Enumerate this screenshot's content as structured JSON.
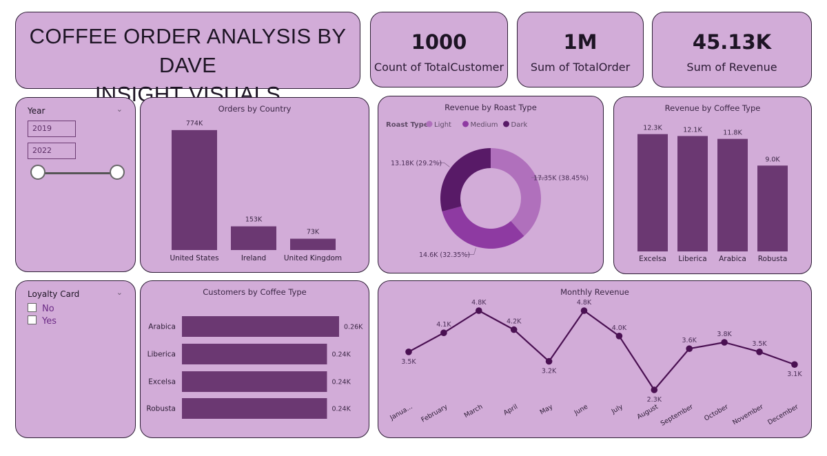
{
  "header": {
    "title_line1": "COFFEE ORDER ANALYSIS BY DAVE",
    "title_line2": "INSIGHT VISUALS"
  },
  "kpis": [
    {
      "value": "1000",
      "label": "Count of TotalCustomer"
    },
    {
      "value": "1M",
      "label": "Sum of TotalOrder"
    },
    {
      "value": "45.13K",
      "label": "Sum of Revenue"
    }
  ],
  "year_slicer": {
    "title": "Year",
    "start": "2019",
    "end": "2022"
  },
  "loyalty_slicer": {
    "title": "Loyalty Card",
    "options": [
      "No",
      "Yes"
    ]
  },
  "colors": {
    "bar": "#6b3872",
    "light": "#b070bc",
    "medium": "#8e3aa2",
    "dark": "#581a67",
    "line": "#4a1052"
  },
  "chart_data": [
    {
      "type": "bar",
      "title": "Orders by Country",
      "categories": [
        "United States",
        "Ireland",
        "United Kingdom"
      ],
      "values": [
        774,
        153,
        73
      ],
      "data_labels": [
        "774K",
        "153K",
        "73K"
      ],
      "ylim": [
        0,
        800
      ]
    },
    {
      "type": "pie",
      "title": "Revenue by Roast Type",
      "legend_title": "Roast Type",
      "legend_placement": "top-left",
      "categories": [
        "Light",
        "Medium",
        "Dark"
      ],
      "values": [
        17.35,
        14.6,
        13.18
      ],
      "data_labels": [
        "17.35K (38.45%)",
        "14.6K (32.35%)",
        "13.18K (29.2%)"
      ]
    },
    {
      "type": "bar",
      "title": "Revenue by Coffee Type",
      "categories": [
        "Excelsa",
        "Liberica",
        "Arabica",
        "Robusta"
      ],
      "values": [
        12.3,
        12.1,
        11.8,
        9.0
      ],
      "data_labels": [
        "12.3K",
        "12.1K",
        "11.8K",
        "9.0K"
      ],
      "ylim": [
        0,
        13
      ]
    },
    {
      "type": "bar",
      "orientation": "horizontal",
      "title": "Customers by Coffee Type",
      "categories": [
        "Arabica",
        "Liberica",
        "Excelsa",
        "Robusta"
      ],
      "values": [
        0.26,
        0.24,
        0.24,
        0.24
      ],
      "data_labels": [
        "0.26K",
        "0.24K",
        "0.24K",
        "0.24K"
      ]
    },
    {
      "type": "line",
      "title": "Monthly Revenue",
      "categories": [
        "Janua...",
        "February",
        "March",
        "April",
        "May",
        "June",
        "July",
        "August",
        "September",
        "October",
        "November",
        "December"
      ],
      "values": [
        3.5,
        4.1,
        4.8,
        4.2,
        3.2,
        4.8,
        4.0,
        2.3,
        3.6,
        3.8,
        3.5,
        3.1
      ],
      "data_labels": [
        "3.5K",
        "4.1K",
        "4.8K",
        "4.2K",
        "3.2K",
        "4.8K",
        "4.0K",
        "2.3K",
        "3.6K",
        "3.8K",
        "3.5K",
        "3.1K"
      ]
    }
  ]
}
